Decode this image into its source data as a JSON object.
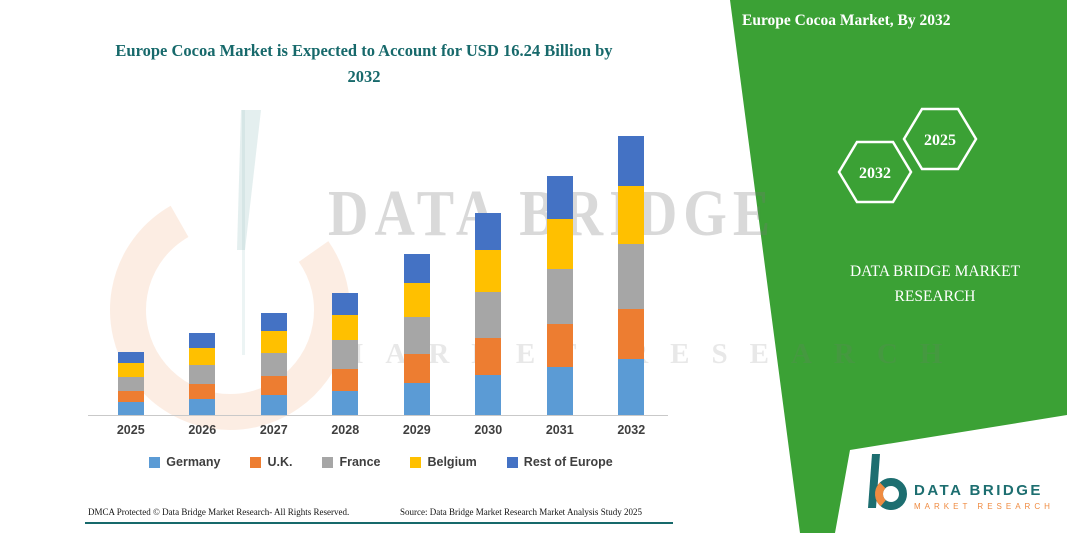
{
  "colors": {
    "panel_green": "#3BA135",
    "title_teal": "#17696B",
    "legend_text": "#3F3F3F",
    "logo_teal": "#1D6E70",
    "logo_orange": "#EF8B41"
  },
  "right_panel": {
    "title": "Europe Cocoa Market, By 2032",
    "hexagons": [
      "2032",
      "2025"
    ],
    "brand_line1": "DATA BRIDGE MARKET",
    "brand_line2": "RESEARCH"
  },
  "watermark": {
    "line1": "DATA BRIDGE",
    "line2": "MARKET RESEARCH"
  },
  "chart_data": {
    "type": "bar",
    "stacked": true,
    "title": "Europe Cocoa Market is Expected to Account for USD 16.24 Billion by 2032",
    "xlabel": "",
    "ylabel": "",
    "value_unit": "USD Billion",
    "grid": false,
    "legend_position": "bottom",
    "ylim": [
      0,
      16.5
    ],
    "categories": [
      "2025",
      "2026",
      "2027",
      "2028",
      "2029",
      "2030",
      "2031",
      "2032"
    ],
    "series": [
      {
        "name": "Germany",
        "color": "#5B9BD5",
        "values": [
          0.73,
          0.95,
          1.19,
          1.42,
          1.87,
          2.34,
          2.78,
          3.25
        ]
      },
      {
        "name": "U.K.",
        "color": "#ED7D31",
        "values": [
          0.66,
          0.86,
          1.07,
          1.28,
          1.69,
          2.11,
          2.5,
          2.92
        ]
      },
      {
        "name": "France",
        "color": "#A6A6A6",
        "values": [
          0.84,
          1.1,
          1.37,
          1.63,
          2.16,
          2.69,
          3.2,
          3.74
        ]
      },
      {
        "name": "Belgium",
        "color": "#FFC000",
        "values": [
          0.77,
          1.0,
          1.25,
          1.49,
          1.97,
          2.46,
          2.92,
          3.41
        ]
      },
      {
        "name": "Rest of Europe",
        "color": "#4472C4",
        "values": [
          0.66,
          0.86,
          1.07,
          1.28,
          1.69,
          2.11,
          2.5,
          2.92
        ]
      }
    ],
    "totals": [
      3.66,
      4.77,
      5.95,
      7.1,
      9.38,
      11.71,
      13.9,
      16.24
    ]
  },
  "footer": {
    "dmca": "DMCA Protected © Data Bridge Market Research-  All Rights Reserved.",
    "source": "Source: Data Bridge Market Research  Market Analysis Study 2025"
  },
  "logo": {
    "name": "DATA BRIDGE",
    "tagline": "MARKET RESEARCH"
  }
}
